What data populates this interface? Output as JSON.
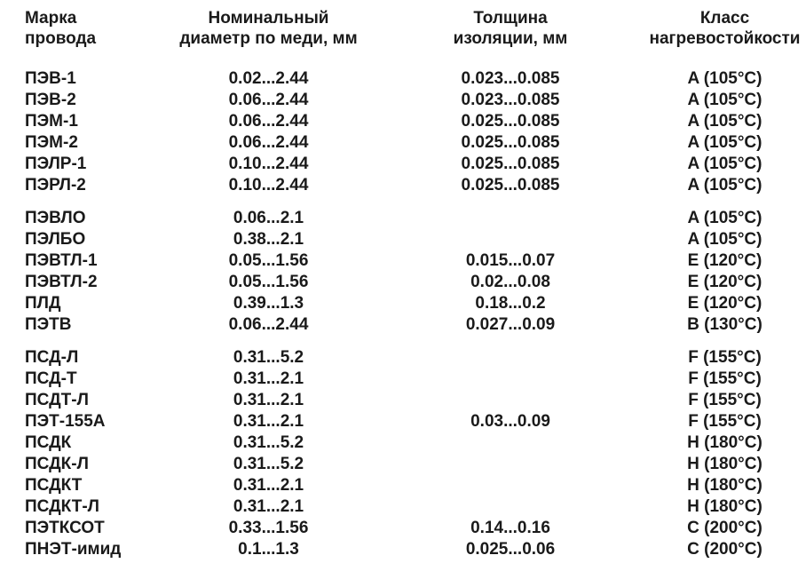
{
  "colors": {
    "text": "#1a1a1a",
    "background": "#ffffff"
  },
  "table": {
    "headers": [
      {
        "line1": "Марка",
        "line2": "провода"
      },
      {
        "line1": "Номинальный",
        "line2": "диаметр по меди, мм"
      },
      {
        "line1": "Толщина",
        "line2": "изоляции, мм"
      },
      {
        "line1": "Класс",
        "line2": "нагревостойкости"
      }
    ],
    "groups": [
      {
        "rows": [
          {
            "cells": [
              "ПЭВ-1",
              "0.02...2.44",
              "0.023...0.085",
              "A (105°C)"
            ]
          },
          {
            "cells": [
              "ПЭВ-2",
              "0.06...2.44",
              "0.023...0.085",
              "A (105°C)"
            ]
          },
          {
            "cells": [
              "ПЭМ-1",
              "0.06...2.44",
              "0.025...0.085",
              "A (105°C)"
            ]
          },
          {
            "cells": [
              "ПЭМ-2",
              "0.06...2.44",
              "0.025...0.085",
              "A (105°C)"
            ]
          },
          {
            "cells": [
              "ПЭЛР-1",
              "0.10...2.44",
              "0.025...0.085",
              "A (105°C)"
            ]
          },
          {
            "cells": [
              "ПЭРЛ-2",
              "0.10...2.44",
              "0.025...0.085",
              "A (105°C)"
            ]
          }
        ]
      },
      {
        "rows": [
          {
            "cells": [
              "ПЭВЛО",
              "0.06...2.1",
              "",
              "A (105°C)"
            ]
          },
          {
            "cells": [
              "ПЭЛБО",
              "0.38...2.1",
              "",
              "A (105°C)"
            ]
          },
          {
            "cells": [
              "ПЭВТЛ-1",
              "0.05...1.56",
              "0.015...0.07",
              "E (120°C)"
            ]
          },
          {
            "cells": [
              "ПЭВТЛ-2",
              "0.05...1.56",
              "0.02...0.08",
              "E (120°C)"
            ]
          },
          {
            "cells": [
              "ПЛД",
              "0.39...1.3",
              "0.18...0.2",
              "E (120°C)"
            ]
          },
          {
            "cells": [
              "ПЭТВ",
              "0.06...2.44",
              "0.027...0.09",
              "B (130°C)"
            ]
          }
        ]
      },
      {
        "rows": [
          {
            "cells": [
              "ПСД-Л",
              "0.31...5.2",
              "",
              "F (155°C)"
            ]
          },
          {
            "cells": [
              "ПСД-Т",
              "0.31...2.1",
              "",
              "F (155°C)"
            ]
          },
          {
            "cells": [
              "ПСДТ-Л",
              "0.31...2.1",
              "",
              "F (155°C)"
            ]
          },
          {
            "cells": [
              "ПЭТ-155А",
              "0.31...2.1",
              "0.03...0.09",
              "F (155°C)"
            ]
          },
          {
            "cells": [
              "ПСДК",
              "0.31...5.2",
              "",
              "H (180°C)"
            ]
          },
          {
            "cells": [
              "ПСДК-Л",
              "0.31...5.2",
              "",
              "H (180°C)"
            ]
          },
          {
            "cells": [
              "ПСДКТ",
              "0.31...2.1",
              "",
              "H (180°C)"
            ]
          },
          {
            "cells": [
              "ПСДКТ-Л",
              "0.31...2.1",
              "",
              "H (180°C)"
            ]
          },
          {
            "cells": [
              "ПЭТКСОТ",
              "0.33...1.56",
              "0.14...0.16",
              "C (200°C)"
            ]
          },
          {
            "cells": [
              "ПНЭТ-имид",
              "0.1...1.3",
              "0.025...0.06",
              "C (200°C)"
            ]
          }
        ]
      }
    ]
  }
}
